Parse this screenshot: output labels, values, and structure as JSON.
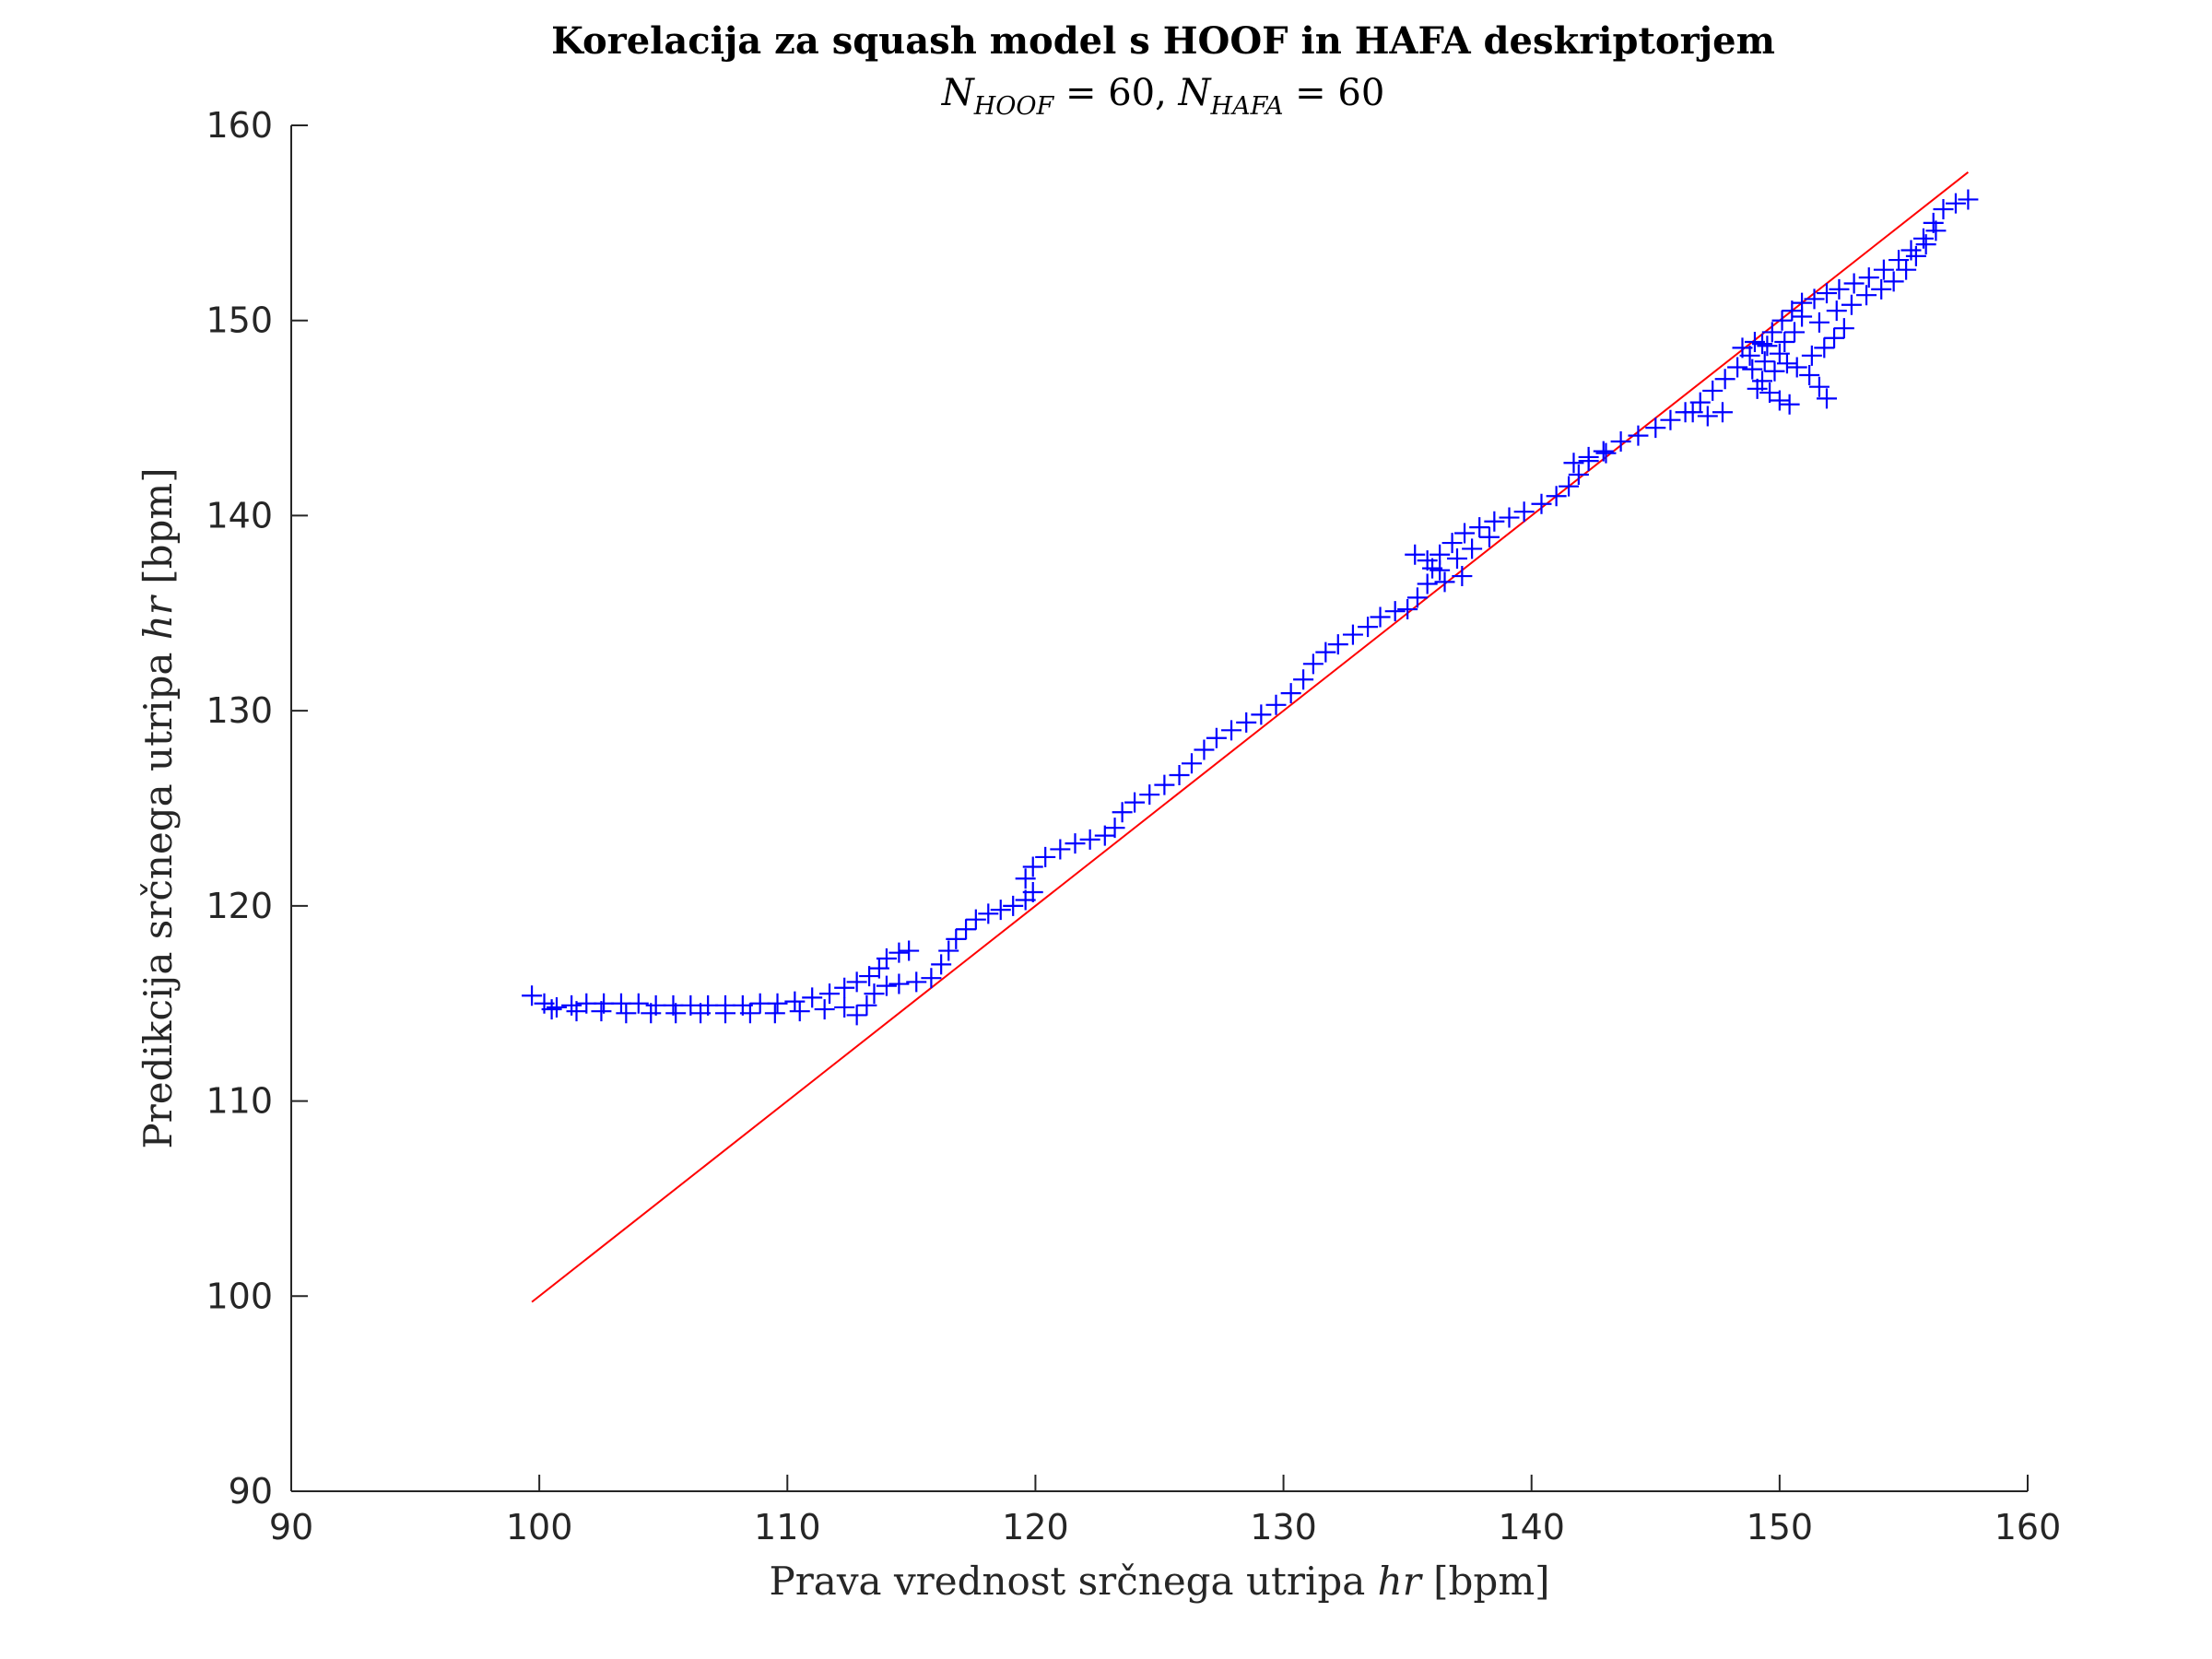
{
  "colors": {
    "markers": "#0000ff",
    "reference_line": "#ff0000",
    "axes": "#262626",
    "background": "#ffffff"
  },
  "chart_data": {
    "type": "scatter",
    "title": "Korelacija za squash model s HOOF in HAFA deskriptorjem",
    "subtitle": {
      "n1_symbol": "N",
      "n1_sub": "HOOF",
      "n1_value": " = 60, ",
      "n2_symbol": "N",
      "n2_sub": "HAFA",
      "n2_value": " = 60"
    },
    "xlabel": {
      "prefix": "Prava vrednost srčnega utripa ",
      "var": "hr",
      "suffix": " [bpm]"
    },
    "ylabel": {
      "prefix": "Predikcija srčnega utripa ",
      "var": "hr",
      "suffix": " [bpm]"
    },
    "xlim": [
      90,
      160
    ],
    "ylim": [
      90,
      160
    ],
    "xticks": [
      90,
      100,
      110,
      120,
      130,
      140,
      150,
      160
    ],
    "yticks": [
      90,
      100,
      110,
      120,
      130,
      140,
      150,
      160
    ],
    "grid": false,
    "marker": "+",
    "reference_line": {
      "x": [
        99.7,
        157.6
      ],
      "y": [
        99.7,
        157.6
      ]
    },
    "series": [
      {
        "values": [
          [
            99.7,
            115.4
          ],
          [
            100.2,
            115.0
          ],
          [
            100.7,
            114.8
          ],
          [
            101.3,
            114.9
          ],
          [
            101.9,
            115.0
          ],
          [
            102.6,
            115.0
          ],
          [
            103.3,
            115.0
          ],
          [
            104.0,
            115.0
          ],
          [
            104.7,
            114.9
          ],
          [
            105.4,
            114.9
          ],
          [
            106.1,
            114.9
          ],
          [
            106.8,
            114.9
          ],
          [
            107.5,
            114.9
          ],
          [
            108.2,
            114.9
          ],
          [
            108.9,
            115.0
          ],
          [
            109.6,
            115.0
          ],
          [
            110.3,
            115.1
          ],
          [
            111.0,
            115.3
          ],
          [
            111.7,
            115.5
          ],
          [
            112.3,
            115.8
          ],
          [
            112.8,
            116.1
          ],
          [
            113.3,
            116.4
          ],
          [
            113.7,
            116.8
          ],
          [
            114.0,
            117.3
          ],
          [
            114.5,
            117.6
          ],
          [
            114.9,
            117.7
          ],
          [
            100.5,
            114.7
          ],
          [
            101.5,
            114.6
          ],
          [
            102.5,
            114.6
          ],
          [
            103.5,
            114.5
          ],
          [
            104.5,
            114.5
          ],
          [
            105.5,
            114.5
          ],
          [
            106.5,
            114.5
          ],
          [
            107.5,
            114.5
          ],
          [
            108.5,
            114.5
          ],
          [
            109.5,
            114.5
          ],
          [
            110.5,
            114.6
          ],
          [
            111.5,
            114.7
          ],
          [
            112.3,
            114.8
          ],
          [
            112.8,
            114.4
          ],
          [
            113.2,
            114.9
          ],
          [
            113.5,
            115.5
          ],
          [
            114.0,
            115.9
          ],
          [
            114.5,
            116.0
          ],
          [
            115.2,
            116.1
          ],
          [
            115.8,
            116.3
          ],
          [
            116.2,
            117.0
          ],
          [
            116.5,
            117.7
          ],
          [
            116.8,
            118.3
          ],
          [
            117.2,
            118.8
          ],
          [
            117.6,
            119.3
          ],
          [
            118.1,
            119.6
          ],
          [
            118.6,
            119.8
          ],
          [
            119.1,
            120.0
          ],
          [
            119.6,
            120.3
          ],
          [
            119.9,
            120.7
          ],
          [
            119.6,
            121.4
          ],
          [
            119.9,
            122.0
          ],
          [
            120.4,
            122.5
          ],
          [
            121.0,
            122.9
          ],
          [
            121.6,
            123.2
          ],
          [
            122.2,
            123.4
          ],
          [
            122.8,
            123.6
          ],
          [
            123.2,
            124.0
          ],
          [
            123.5,
            124.8
          ],
          [
            124.0,
            125.3
          ],
          [
            124.6,
            125.7
          ],
          [
            125.2,
            126.2
          ],
          [
            125.8,
            126.7
          ],
          [
            126.3,
            127.3
          ],
          [
            126.8,
            128.0
          ],
          [
            127.3,
            128.6
          ],
          [
            127.9,
            129.0
          ],
          [
            128.5,
            129.4
          ],
          [
            129.1,
            129.8
          ],
          [
            129.7,
            130.3
          ],
          [
            130.3,
            130.9
          ],
          [
            130.8,
            131.6
          ],
          [
            131.2,
            132.4
          ],
          [
            131.7,
            133.0
          ],
          [
            132.2,
            133.4
          ],
          [
            132.8,
            133.9
          ],
          [
            133.4,
            134.3
          ],
          [
            133.9,
            134.8
          ],
          [
            134.5,
            135.1
          ],
          [
            135.0,
            135.2
          ],
          [
            135.4,
            135.8
          ],
          [
            135.8,
            136.5
          ],
          [
            136.0,
            137.3
          ],
          [
            136.3,
            138.0
          ],
          [
            136.8,
            138.6
          ],
          [
            137.3,
            139.1
          ],
          [
            137.9,
            139.4
          ],
          [
            138.5,
            139.7
          ],
          [
            139.1,
            139.9
          ],
          [
            139.7,
            140.2
          ],
          [
            140.4,
            140.6
          ],
          [
            141.0,
            141.0
          ],
          [
            141.5,
            141.5
          ],
          [
            141.9,
            142.1
          ],
          [
            142.3,
            142.8
          ],
          [
            142.9,
            143.3
          ],
          [
            143.6,
            143.8
          ],
          [
            144.3,
            144.1
          ],
          [
            145.0,
            144.5
          ],
          [
            145.6,
            144.9
          ],
          [
            146.2,
            145.3
          ],
          [
            146.8,
            145.8
          ],
          [
            147.3,
            146.4
          ],
          [
            147.8,
            147.0
          ],
          [
            148.3,
            147.6
          ],
          [
            148.8,
            148.2
          ],
          [
            149.3,
            148.8
          ],
          [
            149.7,
            149.4
          ],
          [
            150.1,
            150.0
          ],
          [
            150.5,
            150.5
          ],
          [
            150.9,
            150.9
          ],
          [
            151.4,
            151.1
          ],
          [
            151.9,
            151.4
          ],
          [
            152.4,
            151.6
          ],
          [
            153.0,
            151.9
          ],
          [
            153.6,
            152.2
          ],
          [
            154.2,
            152.6
          ],
          [
            154.8,
            153.1
          ],
          [
            155.3,
            153.6
          ],
          [
            155.8,
            154.2
          ],
          [
            156.2,
            155.0
          ],
          [
            156.6,
            155.7
          ],
          [
            157.1,
            156.0
          ],
          [
            157.6,
            156.2
          ],
          [
            135.3,
            138.0
          ],
          [
            135.8,
            137.7
          ],
          [
            136.3,
            137.2
          ],
          [
            137.0,
            137.8
          ],
          [
            137.6,
            138.3
          ],
          [
            138.3,
            138.9
          ],
          [
            136.5,
            136.6
          ],
          [
            137.2,
            136.9
          ],
          [
            141.7,
            142.7
          ],
          [
            142.3,
            143.0
          ],
          [
            143.0,
            143.2
          ],
          [
            146.5,
            145.3
          ],
          [
            147.1,
            145.1
          ],
          [
            147.7,
            145.3
          ],
          [
            148.5,
            148.6
          ],
          [
            149.0,
            148.9
          ],
          [
            149.5,
            148.7
          ],
          [
            150.0,
            148.3
          ],
          [
            150.3,
            147.8
          ],
          [
            149.8,
            147.4
          ],
          [
            149.3,
            146.9
          ],
          [
            149.6,
            146.3
          ],
          [
            150.0,
            145.9
          ],
          [
            150.4,
            145.7
          ],
          [
            149.1,
            146.5
          ],
          [
            150.7,
            147.6
          ],
          [
            151.2,
            147.2
          ],
          [
            151.6,
            146.6
          ],
          [
            151.9,
            146.0
          ],
          [
            151.3,
            148.2
          ],
          [
            151.8,
            148.6
          ],
          [
            152.2,
            149.1
          ],
          [
            152.6,
            149.6
          ],
          [
            150.6,
            149.4
          ],
          [
            150.2,
            148.9
          ],
          [
            148.9,
            147.5
          ],
          [
            149.4,
            147.9
          ],
          [
            150.9,
            150.2
          ],
          [
            151.6,
            149.9
          ],
          [
            152.3,
            150.5
          ],
          [
            152.9,
            150.8
          ],
          [
            153.5,
            151.3
          ],
          [
            154.1,
            151.6
          ],
          [
            154.6,
            152.0
          ],
          [
            155.1,
            152.6
          ],
          [
            155.5,
            153.3
          ],
          [
            155.9,
            153.9
          ],
          [
            156.3,
            154.6
          ]
        ]
      }
    ]
  }
}
